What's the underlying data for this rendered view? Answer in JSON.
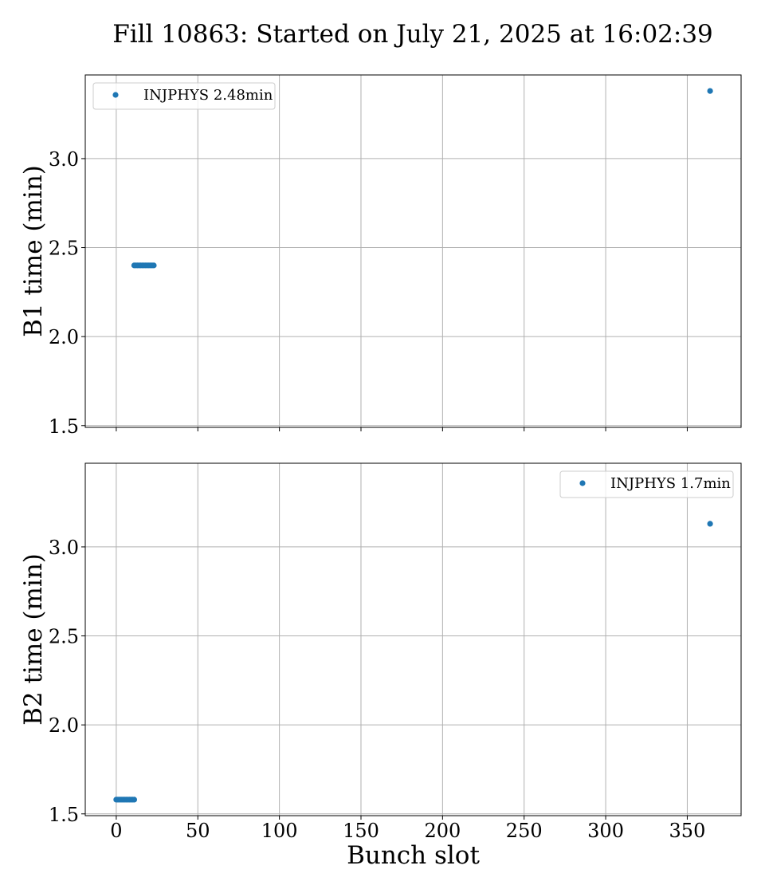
{
  "title": "Fill 10863: Started on July 21, 2025 at 16:02:39",
  "chart_data": [
    {
      "type": "scatter",
      "ylabel": "B1 time (min)",
      "xlabel": "",
      "xlim": [
        -19,
        383
      ],
      "ylim": [
        1.49,
        3.47
      ],
      "x_ticks": [
        0,
        50,
        100,
        150,
        200,
        250,
        300,
        350
      ],
      "x_tick_labels_visible": false,
      "y_ticks": [
        1.5,
        2.0,
        2.5,
        3.0
      ],
      "y_tick_labels": [
        "1.5",
        "2.0",
        "2.5",
        "3.0"
      ],
      "grid": true,
      "legend_position": "upper-left",
      "color": "#1f77b4",
      "series": [
        {
          "name": "INJPHYS 2.48min",
          "points": [
            [
              11,
              2.4
            ],
            [
              12,
              2.4
            ],
            [
              13,
              2.4
            ],
            [
              14,
              2.4
            ],
            [
              15,
              2.4
            ],
            [
              16,
              2.4
            ],
            [
              17,
              2.4
            ],
            [
              18,
              2.4
            ],
            [
              19,
              2.4
            ],
            [
              20,
              2.4
            ],
            [
              21,
              2.4
            ],
            [
              22,
              2.4
            ],
            [
              23,
              2.4
            ],
            [
              364,
              3.38
            ]
          ]
        }
      ]
    },
    {
      "type": "scatter",
      "ylabel": "B2 time (min)",
      "xlabel": "Bunch slot",
      "xlim": [
        -19,
        383
      ],
      "ylim": [
        1.49,
        3.47
      ],
      "x_ticks": [
        0,
        50,
        100,
        150,
        200,
        250,
        300,
        350
      ],
      "x_tick_labels": [
        "0",
        "50",
        "100",
        "150",
        "200",
        "250",
        "300",
        "350"
      ],
      "x_tick_labels_visible": true,
      "y_ticks": [
        1.5,
        2.0,
        2.5,
        3.0
      ],
      "y_tick_labels": [
        "1.5",
        "2.0",
        "2.5",
        "3.0"
      ],
      "grid": true,
      "legend_position": "upper-right",
      "color": "#1f77b4",
      "series": [
        {
          "name": "INJPHYS 1.7min",
          "points": [
            [
              0,
              1.58
            ],
            [
              1,
              1.58
            ],
            [
              2,
              1.58
            ],
            [
              3,
              1.58
            ],
            [
              4,
              1.58
            ],
            [
              5,
              1.58
            ],
            [
              6,
              1.58
            ],
            [
              7,
              1.58
            ],
            [
              8,
              1.58
            ],
            [
              9,
              1.58
            ],
            [
              10,
              1.58
            ],
            [
              11,
              1.58
            ],
            [
              364,
              3.13
            ]
          ]
        }
      ]
    }
  ]
}
